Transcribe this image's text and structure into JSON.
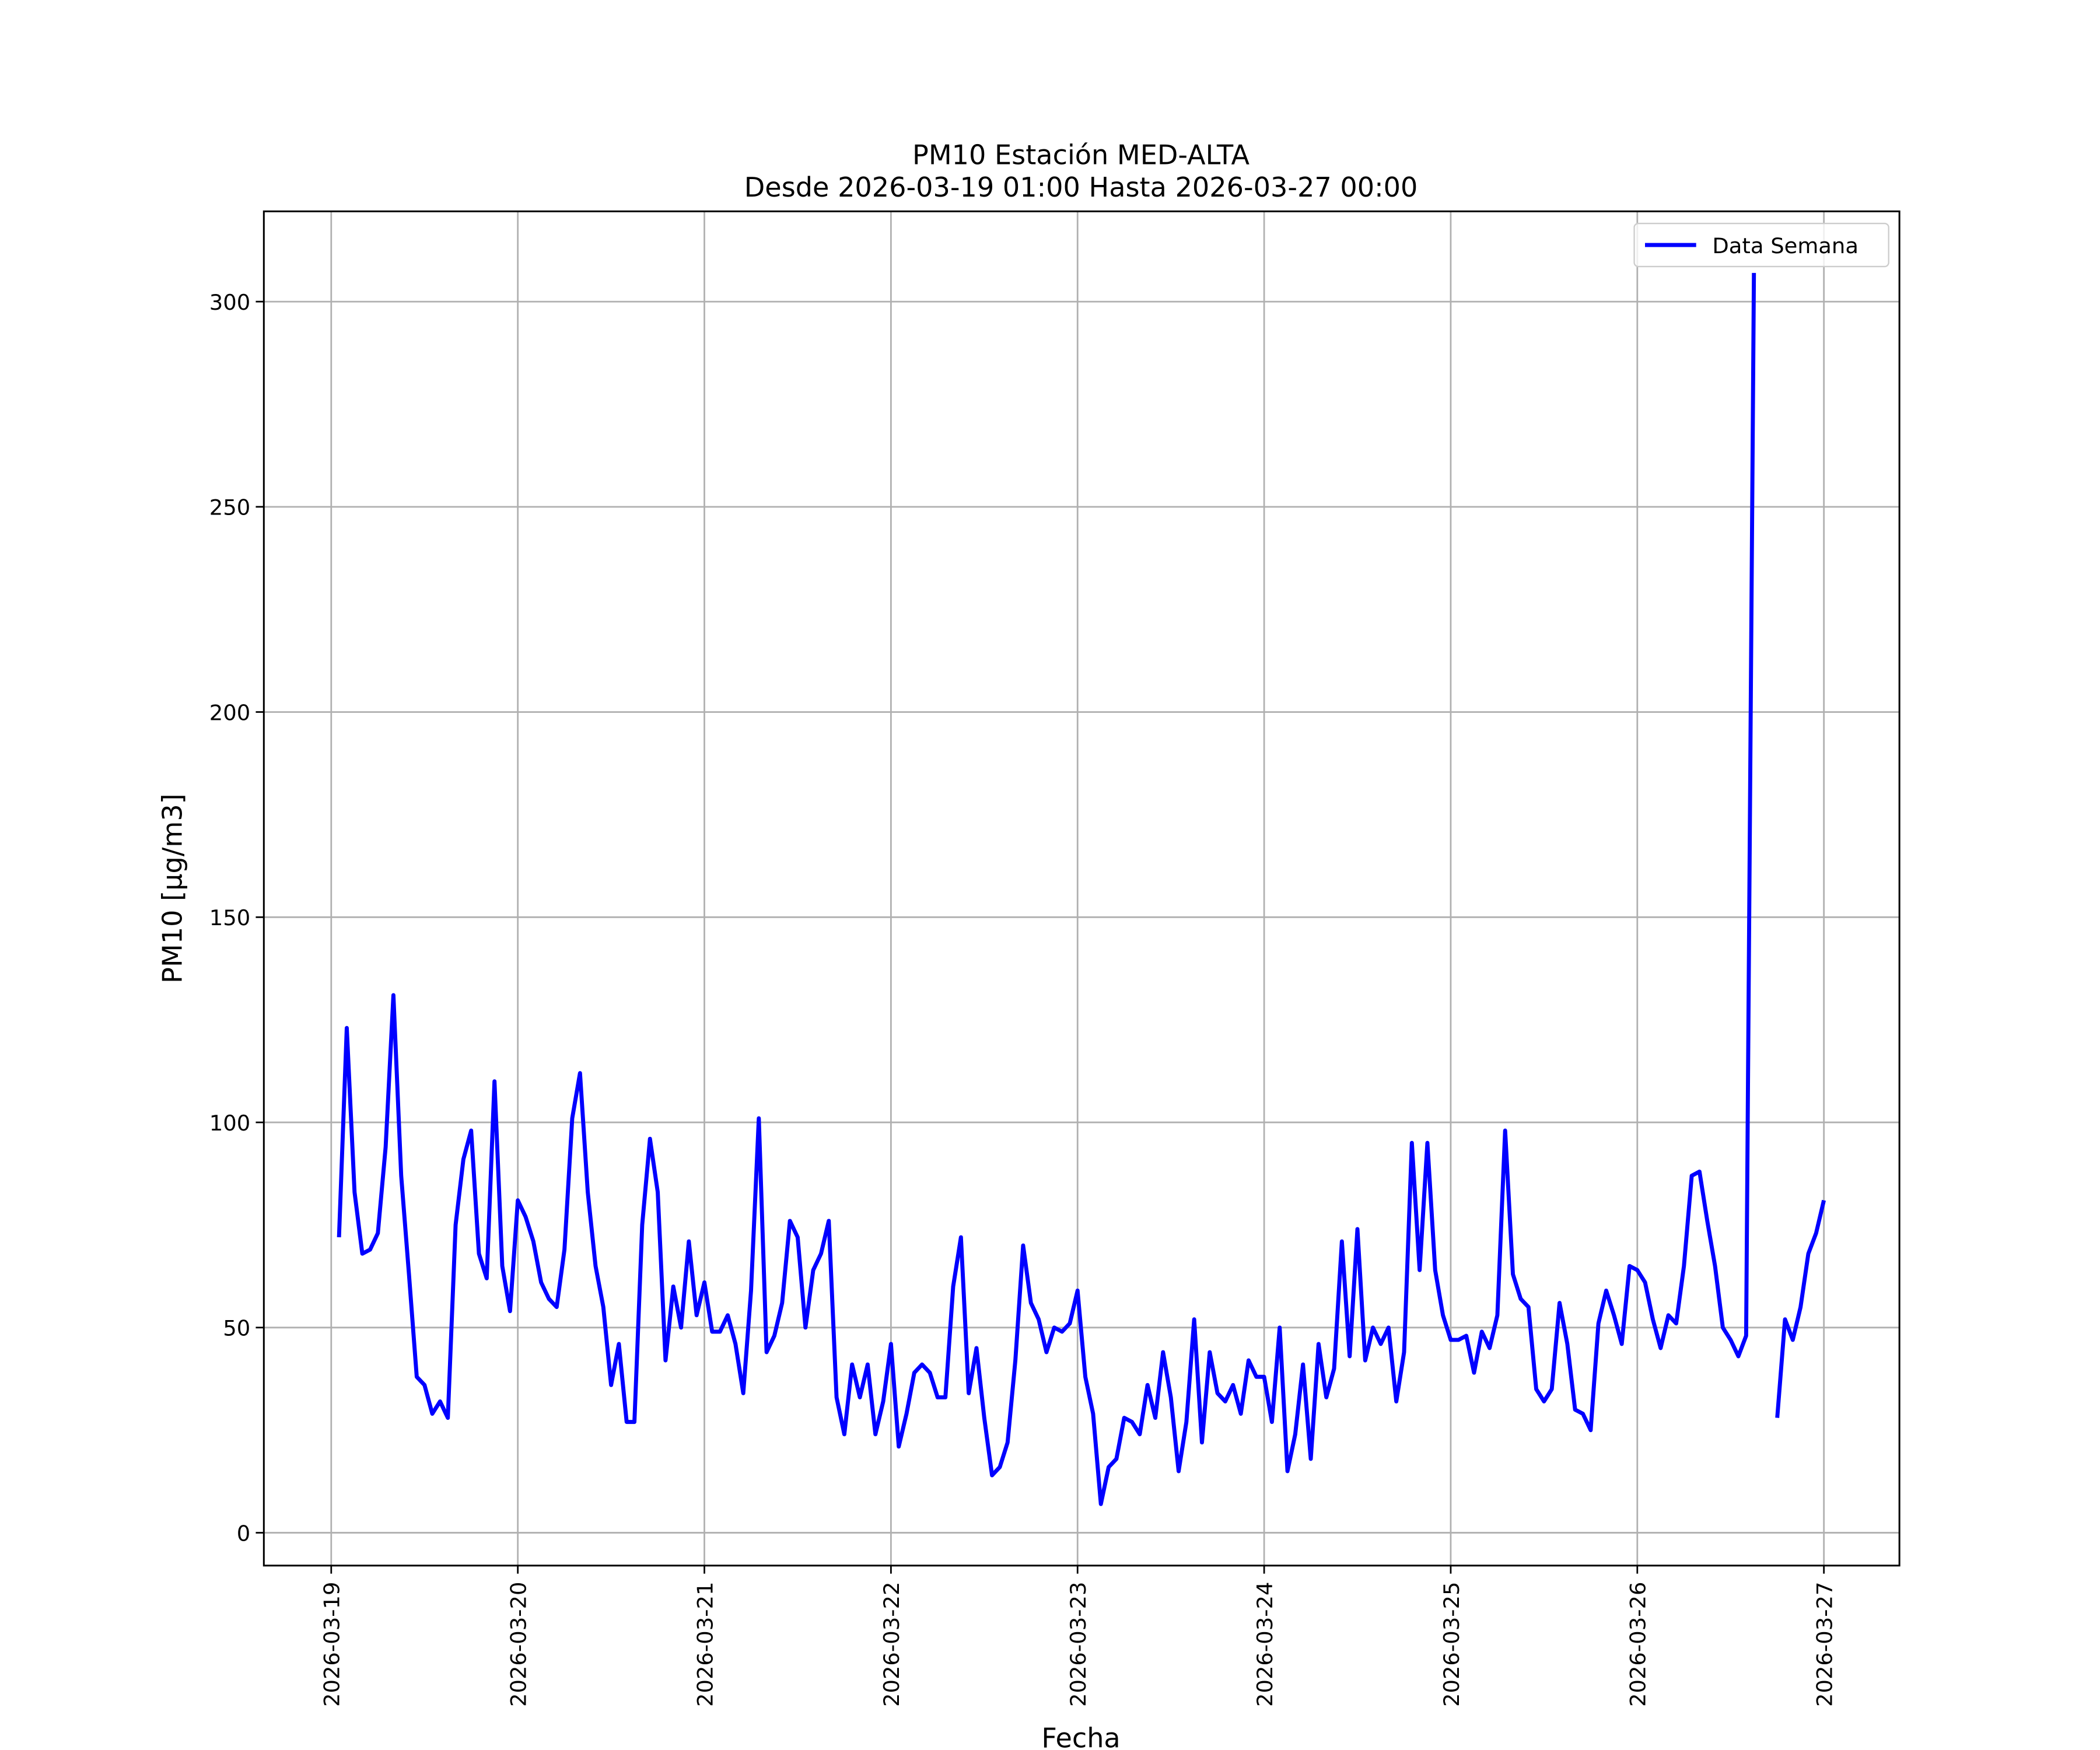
{
  "chart_data": {
    "type": "line",
    "title": "PM10 Estación MED-ALTA",
    "subtitle": "Desde 2026-03-19 01:00 Hasta 2026-03-27 00:00",
    "x_label": "Fecha",
    "y_label": "PM10 [μg/m3]",
    "x": [
      "2026-03-19 01:00",
      "2026-03-19 02:00",
      "2026-03-19 03:00",
      "2026-03-19 04:00",
      "2026-03-19 05:00",
      "2026-03-19 06:00",
      "2026-03-19 07:00",
      "2026-03-19 08:00",
      "2026-03-19 09:00",
      "2026-03-19 10:00",
      "2026-03-19 11:00",
      "2026-03-19 12:00",
      "2026-03-19 13:00",
      "2026-03-19 14:00",
      "2026-03-19 15:00",
      "2026-03-19 16:00",
      "2026-03-19 17:00",
      "2026-03-19 18:00",
      "2026-03-19 19:00",
      "2026-03-19 20:00",
      "2026-03-19 21:00",
      "2026-03-19 22:00",
      "2026-03-19 23:00",
      "2026-03-20 00:00",
      "2026-03-20 01:00",
      "2026-03-20 02:00",
      "2026-03-20 03:00",
      "2026-03-20 04:00",
      "2026-03-20 05:00",
      "2026-03-20 06:00",
      "2026-03-20 07:00",
      "2026-03-20 08:00",
      "2026-03-20 09:00",
      "2026-03-20 10:00",
      "2026-03-20 11:00",
      "2026-03-20 12:00",
      "2026-03-20 13:00",
      "2026-03-20 14:00",
      "2026-03-20 15:00",
      "2026-03-20 16:00",
      "2026-03-20 17:00",
      "2026-03-20 18:00",
      "2026-03-20 19:00",
      "2026-03-20 20:00",
      "2026-03-20 21:00",
      "2026-03-20 22:00",
      "2026-03-20 23:00",
      "2026-03-21 00:00",
      "2026-03-21 01:00",
      "2026-03-21 02:00",
      "2026-03-21 03:00",
      "2026-03-21 04:00",
      "2026-03-21 05:00",
      "2026-03-21 06:00",
      "2026-03-21 07:00",
      "2026-03-21 08:00",
      "2026-03-21 09:00",
      "2026-03-21 10:00",
      "2026-03-21 11:00",
      "2026-03-21 12:00",
      "2026-03-21 13:00",
      "2026-03-21 14:00",
      "2026-03-21 15:00",
      "2026-03-21 16:00",
      "2026-03-21 17:00",
      "2026-03-21 18:00",
      "2026-03-21 19:00",
      "2026-03-21 20:00",
      "2026-03-21 21:00",
      "2026-03-21 22:00",
      "2026-03-21 23:00",
      "2026-03-22 00:00",
      "2026-03-22 01:00",
      "2026-03-22 02:00",
      "2026-03-22 03:00",
      "2026-03-22 04:00",
      "2026-03-22 05:00",
      "2026-03-22 06:00",
      "2026-03-22 07:00",
      "2026-03-22 08:00",
      "2026-03-22 09:00",
      "2026-03-22 10:00",
      "2026-03-22 11:00",
      "2026-03-22 12:00",
      "2026-03-22 13:00",
      "2026-03-22 14:00",
      "2026-03-22 15:00",
      "2026-03-22 16:00",
      "2026-03-22 17:00",
      "2026-03-22 18:00",
      "2026-03-22 19:00",
      "2026-03-22 20:00",
      "2026-03-22 21:00",
      "2026-03-22 22:00",
      "2026-03-22 23:00",
      "2026-03-23 00:00",
      "2026-03-23 01:00",
      "2026-03-23 02:00",
      "2026-03-23 03:00",
      "2026-03-23 04:00",
      "2026-03-23 05:00",
      "2026-03-23 06:00",
      "2026-03-23 07:00",
      "2026-03-23 08:00",
      "2026-03-23 09:00",
      "2026-03-23 10:00",
      "2026-03-23 11:00",
      "2026-03-23 12:00",
      "2026-03-23 13:00",
      "2026-03-23 14:00",
      "2026-03-23 15:00",
      "2026-03-23 16:00",
      "2026-03-23 17:00",
      "2026-03-23 18:00",
      "2026-03-23 19:00",
      "2026-03-23 20:00",
      "2026-03-23 21:00",
      "2026-03-23 22:00",
      "2026-03-23 23:00",
      "2026-03-24 00:00",
      "2026-03-24 01:00",
      "2026-03-24 02:00",
      "2026-03-24 03:00",
      "2026-03-24 04:00",
      "2026-03-24 05:00",
      "2026-03-24 06:00",
      "2026-03-24 07:00",
      "2026-03-24 08:00",
      "2026-03-24 09:00",
      "2026-03-24 10:00",
      "2026-03-24 11:00",
      "2026-03-24 12:00",
      "2026-03-24 13:00",
      "2026-03-24 14:00",
      "2026-03-24 15:00",
      "2026-03-24 16:00",
      "2026-03-24 17:00",
      "2026-03-24 18:00",
      "2026-03-24 19:00",
      "2026-03-24 20:00",
      "2026-03-24 21:00",
      "2026-03-24 22:00",
      "2026-03-24 23:00",
      "2026-03-25 00:00",
      "2026-03-25 01:00",
      "2026-03-25 02:00",
      "2026-03-25 03:00",
      "2026-03-25 04:00",
      "2026-03-25 05:00",
      "2026-03-25 06:00",
      "2026-03-25 07:00",
      "2026-03-25 08:00",
      "2026-03-25 09:00",
      "2026-03-25 10:00",
      "2026-03-25 11:00",
      "2026-03-25 12:00",
      "2026-03-25 13:00",
      "2026-03-25 14:00",
      "2026-03-25 15:00",
      "2026-03-25 16:00",
      "2026-03-25 17:00",
      "2026-03-25 18:00",
      "2026-03-25 19:00",
      "2026-03-25 20:00",
      "2026-03-25 21:00",
      "2026-03-25 22:00",
      "2026-03-25 23:00",
      "2026-03-26 00:00",
      "2026-03-26 01:00",
      "2026-03-26 02:00",
      "2026-03-26 03:00",
      "2026-03-26 04:00",
      "2026-03-26 05:00",
      "2026-03-26 06:00",
      "2026-03-26 07:00",
      "2026-03-26 08:00",
      "2026-03-26 09:00",
      "2026-03-26 10:00",
      "2026-03-26 11:00",
      "2026-03-26 12:00",
      "2026-03-26 13:00",
      "2026-03-26 14:00",
      "2026-03-26 15:00",
      "2026-03-26 16:00",
      "2026-03-26 17:00",
      "2026-03-26 18:00",
      "2026-03-26 19:00",
      "2026-03-26 20:00",
      "2026-03-26 21:00",
      "2026-03-26 22:00",
      "2026-03-26 23:00",
      "2026-03-27 00:00"
    ],
    "series": [
      {
        "name": "Data Semana",
        "color": "#0000ff",
        "values": [
          72,
          123,
          83,
          68,
          69,
          73,
          94,
          131,
          87,
          63,
          38,
          36,
          29,
          32,
          28,
          75,
          91,
          98,
          68,
          62,
          110,
          65,
          54,
          81,
          77,
          71,
          61,
          57,
          55,
          69,
          101,
          112,
          83,
          65,
          55,
          36,
          46,
          27,
          27,
          75,
          96,
          83,
          42,
          60,
          50,
          71,
          53,
          61,
          49,
          49,
          53,
          46,
          34,
          59,
          101,
          44,
          48,
          56,
          76,
          72,
          50,
          64,
          68,
          76,
          33,
          24,
          41,
          33,
          41,
          24,
          32,
          46,
          21,
          29,
          39,
          41,
          39,
          33,
          33,
          60,
          72,
          34,
          45,
          28,
          14,
          16,
          22,
          42,
          70,
          56,
          52,
          44,
          50,
          49,
          51,
          59,
          38,
          29,
          7,
          16,
          18,
          28,
          27,
          24,
          36,
          28,
          44,
          33,
          15,
          27,
          52,
          22,
          44,
          34,
          32,
          36,
          29,
          42,
          38,
          38,
          27,
          50,
          15,
          24,
          41,
          18,
          46,
          33,
          40,
          71,
          43,
          74,
          42,
          50,
          46,
          50,
          32,
          44,
          95,
          64,
          95,
          64,
          53,
          47,
          47,
          48,
          39,
          49,
          45,
          53,
          98,
          63,
          57,
          55,
          35,
          32,
          35,
          56,
          46,
          30,
          29,
          25,
          51,
          59,
          53,
          46,
          65,
          64,
          61,
          52,
          45,
          53,
          51,
          65,
          87,
          88,
          76,
          65,
          50,
          47,
          43,
          48,
          307,
          null,
          null,
          28,
          52,
          47,
          55,
          68,
          73,
          81
        ]
      }
    ],
    "xlim": [
      "2026-03-18 15:20",
      "2026-03-27 09:43"
    ],
    "ylim": [
      -8,
      322
    ],
    "xticks": [
      "2026-03-19",
      "2026-03-20",
      "2026-03-21",
      "2026-03-22",
      "2026-03-23",
      "2026-03-24",
      "2026-03-25",
      "2026-03-26",
      "2026-03-27"
    ],
    "yticks": [
      0,
      50,
      100,
      150,
      200,
      250,
      300
    ],
    "grid": true,
    "legend": "upper right"
  }
}
